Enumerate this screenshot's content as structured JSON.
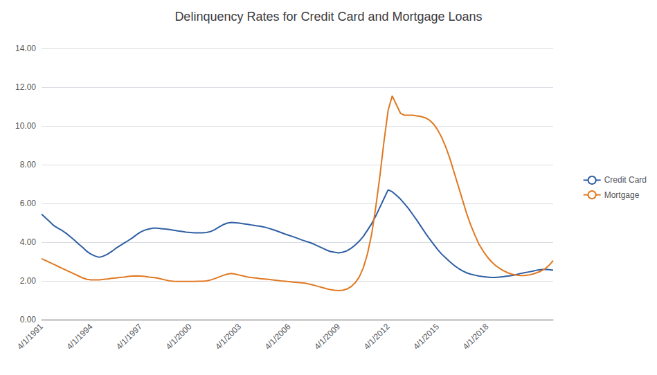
{
  "chart_data": {
    "type": "line",
    "title": "Delinquency Rates for Credit Card and Mortgage Loans",
    "categories": [
      "4/1/1991",
      null,
      null,
      null,
      null,
      null,
      null,
      null,
      null,
      null,
      null,
      null,
      "4/1/1994",
      null,
      null,
      null,
      null,
      null,
      null,
      null,
      null,
      null,
      null,
      null,
      "4/1/1997",
      null,
      null,
      null,
      null,
      null,
      null,
      null,
      null,
      null,
      null,
      null,
      "4/1/2000",
      null,
      null,
      null,
      null,
      null,
      null,
      null,
      null,
      null,
      null,
      null,
      "4/1/2003",
      null,
      null,
      null,
      null,
      null,
      null,
      null,
      null,
      null,
      null,
      null,
      "4/1/2006",
      null,
      null,
      null,
      null,
      null,
      null,
      null,
      null,
      null,
      null,
      null,
      "4/1/2009",
      null,
      null,
      null,
      null,
      null,
      null,
      null,
      null,
      null,
      null,
      null,
      "4/1/2012",
      null,
      null,
      null,
      null,
      null,
      null,
      null,
      null,
      null,
      null,
      null,
      "4/1/2015",
      null,
      null,
      null,
      null,
      null,
      null,
      null,
      null,
      null,
      null,
      null,
      "4/1/2018",
      null,
      null,
      null,
      null,
      null,
      null,
      null,
      null,
      null,
      null,
      null,
      null,
      null,
      null,
      null,
      null
    ],
    "series": [
      {
        "name": "Credit Card",
        "color": "#2e5fa3",
        "values": [
          5.45,
          5.25,
          5.05,
          4.85,
          4.72,
          4.6,
          4.45,
          4.28,
          4.1,
          3.9,
          3.72,
          3.52,
          3.38,
          3.28,
          3.22,
          3.28,
          3.38,
          3.52,
          3.68,
          3.82,
          3.95,
          4.08,
          4.22,
          4.38,
          4.52,
          4.62,
          4.68,
          4.72,
          4.72,
          4.7,
          4.68,
          4.65,
          4.62,
          4.58,
          4.55,
          4.52,
          4.5,
          4.48,
          4.48,
          4.48,
          4.5,
          4.55,
          4.65,
          4.78,
          4.9,
          4.98,
          5.02,
          5.0,
          4.98,
          4.95,
          4.92,
          4.88,
          4.85,
          4.82,
          4.78,
          4.72,
          4.65,
          4.58,
          4.5,
          4.42,
          4.35,
          4.28,
          4.2,
          4.12,
          4.05,
          3.98,
          3.9,
          3.8,
          3.7,
          3.6,
          3.52,
          3.48,
          3.45,
          3.48,
          3.55,
          3.68,
          3.85,
          4.05,
          4.3,
          4.62,
          4.95,
          5.35,
          5.8,
          6.25,
          6.7,
          6.6,
          6.42,
          6.22,
          5.98,
          5.72,
          5.42,
          5.12,
          4.8,
          4.48,
          4.18,
          3.9,
          3.62,
          3.38,
          3.18,
          2.98,
          2.8,
          2.65,
          2.52,
          2.42,
          2.35,
          2.3,
          2.25,
          2.22,
          2.2,
          2.18,
          2.18,
          2.2,
          2.22,
          2.25,
          2.28,
          2.32,
          2.38,
          2.42,
          2.46,
          2.5,
          2.55,
          2.58,
          2.6,
          2.58,
          2.55
        ]
      },
      {
        "name": "Mortgage",
        "color": "#e07820",
        "values": [
          3.15,
          3.05,
          2.95,
          2.85,
          2.75,
          2.65,
          2.55,
          2.45,
          2.35,
          2.25,
          2.15,
          2.08,
          2.05,
          2.05,
          2.05,
          2.08,
          2.1,
          2.13,
          2.15,
          2.18,
          2.2,
          2.23,
          2.25,
          2.26,
          2.25,
          2.23,
          2.2,
          2.18,
          2.15,
          2.1,
          2.05,
          2.0,
          1.98,
          1.97,
          1.97,
          1.97,
          1.97,
          1.97,
          1.98,
          1.98,
          2.0,
          2.05,
          2.12,
          2.2,
          2.28,
          2.35,
          2.38,
          2.35,
          2.3,
          2.25,
          2.2,
          2.17,
          2.15,
          2.12,
          2.1,
          2.08,
          2.05,
          2.03,
          2.0,
          1.98,
          1.96,
          1.94,
          1.92,
          1.9,
          1.88,
          1.83,
          1.78,
          1.72,
          1.66,
          1.6,
          1.55,
          1.52,
          1.5,
          1.52,
          1.58,
          1.7,
          1.9,
          2.2,
          2.68,
          3.4,
          4.4,
          5.8,
          7.4,
          9.2,
          10.8,
          11.55,
          11.1,
          10.65,
          10.55,
          10.55,
          10.55,
          10.52,
          10.48,
          10.42,
          10.3,
          10.1,
          9.8,
          9.4,
          8.9,
          8.3,
          7.6,
          6.9,
          6.2,
          5.5,
          4.9,
          4.38,
          3.9,
          3.55,
          3.25,
          3.0,
          2.8,
          2.65,
          2.52,
          2.42,
          2.35,
          2.3,
          2.28,
          2.28,
          2.3,
          2.35,
          2.42,
          2.5,
          2.62,
          2.8,
          3.05
        ]
      }
    ],
    "ylim": [
      0,
      14.0
    ],
    "yticks": [
      {
        "value": 0.0,
        "label": "0.00"
      },
      {
        "value": 2.0,
        "label": "2.00"
      },
      {
        "value": 4.0,
        "label": "4.00"
      },
      {
        "value": 6.0,
        "label": "6.00"
      },
      {
        "value": 8.0,
        "label": "8.00"
      },
      {
        "value": 10.0,
        "label": "10.00"
      },
      {
        "value": 12.0,
        "label": "12.00"
      },
      {
        "value": 14.0,
        "label": "14.00"
      }
    ],
    "grid": true,
    "legend": "right"
  }
}
